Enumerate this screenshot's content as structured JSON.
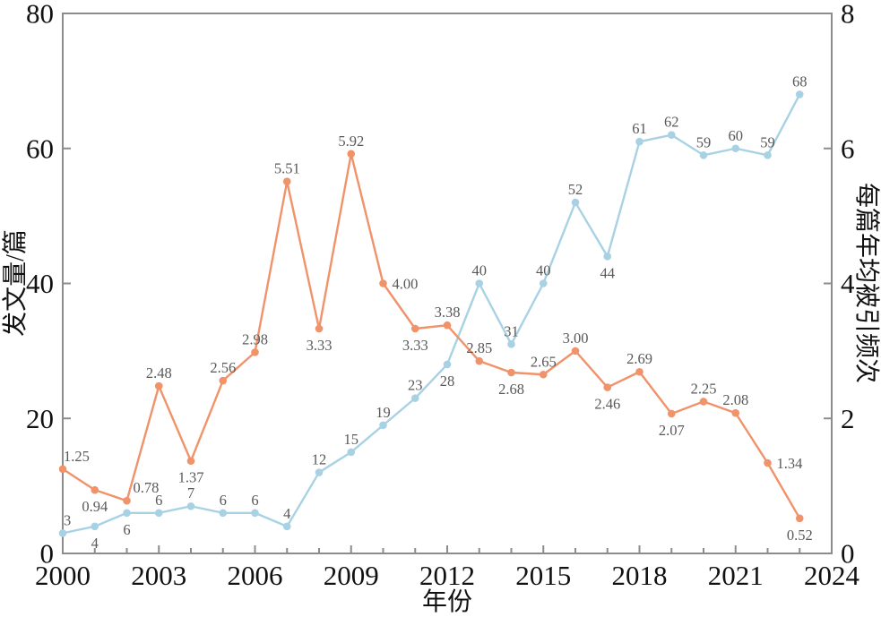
{
  "chart_data": {
    "type": "line",
    "title": "",
    "x": [
      2000,
      2001,
      2002,
      2003,
      2004,
      2005,
      2006,
      2007,
      2008,
      2009,
      2010,
      2011,
      2012,
      2013,
      2014,
      2015,
      2016,
      2017,
      2018,
      2019,
      2020,
      2021,
      2022,
      2023
    ],
    "x_axis": {
      "label": "年份",
      "range": [
        2000,
        2024
      ],
      "major_ticks": [
        2000,
        2003,
        2006,
        2009,
        2012,
        2015,
        2018,
        2021,
        2024
      ],
      "minor_tick_step": 1
    },
    "y_axis_left": {
      "label": "发文量/篇",
      "range": [
        0,
        80
      ],
      "ticks": [
        0,
        20,
        40,
        60,
        80
      ]
    },
    "y_axis_right": {
      "label": "每篇年均被引频次",
      "range": [
        0,
        8
      ],
      "ticks": [
        0,
        2,
        4,
        6,
        8
      ]
    },
    "grid": false,
    "legend": "none",
    "series": [
      {
        "name": "发文量/篇",
        "axis": "left",
        "color": "#a8d2e4",
        "values": [
          3,
          4,
          6,
          6,
          7,
          6,
          6,
          4,
          12,
          15,
          19,
          23,
          28,
          40,
          31,
          40,
          52,
          44,
          61,
          62,
          59,
          60,
          59,
          68
        ],
        "labels": [
          "3",
          "4",
          "6",
          "6",
          "7",
          "6",
          "6",
          "4",
          "12",
          "15",
          "19",
          "23",
          "28",
          "40",
          "31",
          "40",
          "52",
          "44",
          "61",
          "62",
          "59",
          "60",
          "59",
          "68"
        ],
        "label_side": [
          "above",
          "below",
          "below",
          "above",
          "above",
          "above",
          "above",
          "above",
          "above",
          "above",
          "above",
          "above",
          "below",
          "above",
          "above",
          "above",
          "above",
          "below",
          "above",
          "above",
          "above",
          "above",
          "above",
          "above"
        ]
      },
      {
        "name": "每篇年均被引频次",
        "axis": "right",
        "color": "#f0926a",
        "values": [
          1.25,
          0.94,
          0.78,
          2.48,
          1.37,
          2.56,
          2.98,
          5.51,
          3.33,
          5.92,
          4.0,
          3.33,
          3.38,
          2.85,
          2.68,
          2.65,
          3.0,
          2.46,
          2.69,
          2.07,
          2.25,
          2.08,
          1.34,
          0.52
        ],
        "labels": [
          "1.25",
          "0.94",
          "0.78",
          "2.48",
          "1.37",
          "2.56",
          "2.98",
          "5.51",
          "3.33",
          "5.92",
          "4.00",
          "3.33",
          "3.38",
          "2.85",
          "2.68",
          "2.65",
          "3.00",
          "2.46",
          "2.69",
          "2.07",
          "2.25",
          "2.08",
          "1.34",
          "0.52"
        ],
        "label_side": [
          "above",
          "below",
          "above-right",
          "above",
          "below",
          "above",
          "above",
          "above",
          "below",
          "above",
          "right",
          "below",
          "above",
          "above",
          "below",
          "above",
          "above",
          "below",
          "above",
          "below",
          "above",
          "above",
          "right",
          "below"
        ]
      }
    ],
    "colors": {
      "publications_line": "#a8d2e4",
      "citations_line": "#f0926a",
      "value_label": "#595959",
      "axis_frame": "#8c8c8c",
      "tick_text": "#111111"
    }
  }
}
